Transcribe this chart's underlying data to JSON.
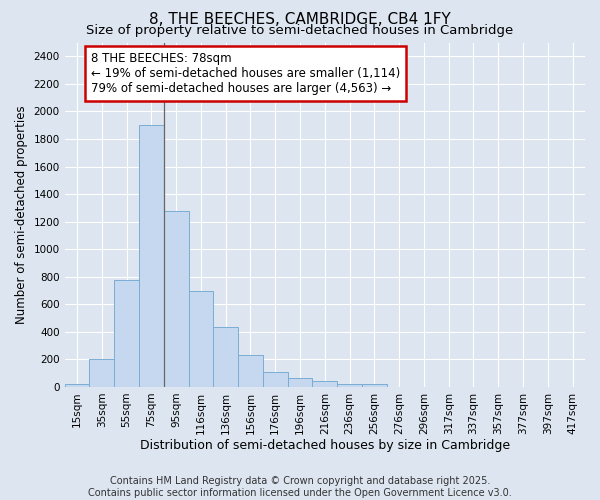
{
  "title": "8, THE BEECHES, CAMBRIDGE, CB4 1FY",
  "subtitle": "Size of property relative to semi-detached houses in Cambridge",
  "xlabel": "Distribution of semi-detached houses by size in Cambridge",
  "ylabel": "Number of semi-detached properties",
  "categories": [
    "15sqm",
    "35sqm",
    "55sqm",
    "75sqm",
    "95sqm",
    "116sqm",
    "136sqm",
    "156sqm",
    "176sqm",
    "196sqm",
    "216sqm",
    "236sqm",
    "256sqm",
    "276sqm",
    "296sqm",
    "317sqm",
    "337sqm",
    "357sqm",
    "377sqm",
    "397sqm",
    "417sqm"
  ],
  "values": [
    25,
    200,
    775,
    1900,
    1275,
    700,
    435,
    230,
    110,
    65,
    40,
    25,
    20,
    0,
    0,
    0,
    0,
    0,
    0,
    0,
    0
  ],
  "bar_color": "#c5d8f0",
  "bar_edge_color": "#7aadd4",
  "annotation_line1": "8 THE BEECHES: 78sqm",
  "annotation_line2": "← 19% of semi-detached houses are smaller (1,114)",
  "annotation_line3": "79% of semi-detached houses are larger (4,563) →",
  "annotation_box_color": "#ffffff",
  "annotation_border_color": "#cc0000",
  "vline_x_index": 3,
  "ylim": [
    0,
    2500
  ],
  "yticks": [
    0,
    200,
    400,
    600,
    800,
    1000,
    1200,
    1400,
    1600,
    1800,
    2000,
    2200,
    2400
  ],
  "bg_color": "#dde6f0",
  "plot_bg_color": "#dde6f0",
  "grid_color": "#ffffff",
  "footer_line1": "Contains HM Land Registry data © Crown copyright and database right 2025.",
  "footer_line2": "Contains public sector information licensed under the Open Government Licence v3.0.",
  "title_fontsize": 11,
  "subtitle_fontsize": 9.5,
  "xlabel_fontsize": 9,
  "ylabel_fontsize": 8.5,
  "tick_fontsize": 7.5,
  "annotation_fontsize": 8.5,
  "footer_fontsize": 7
}
